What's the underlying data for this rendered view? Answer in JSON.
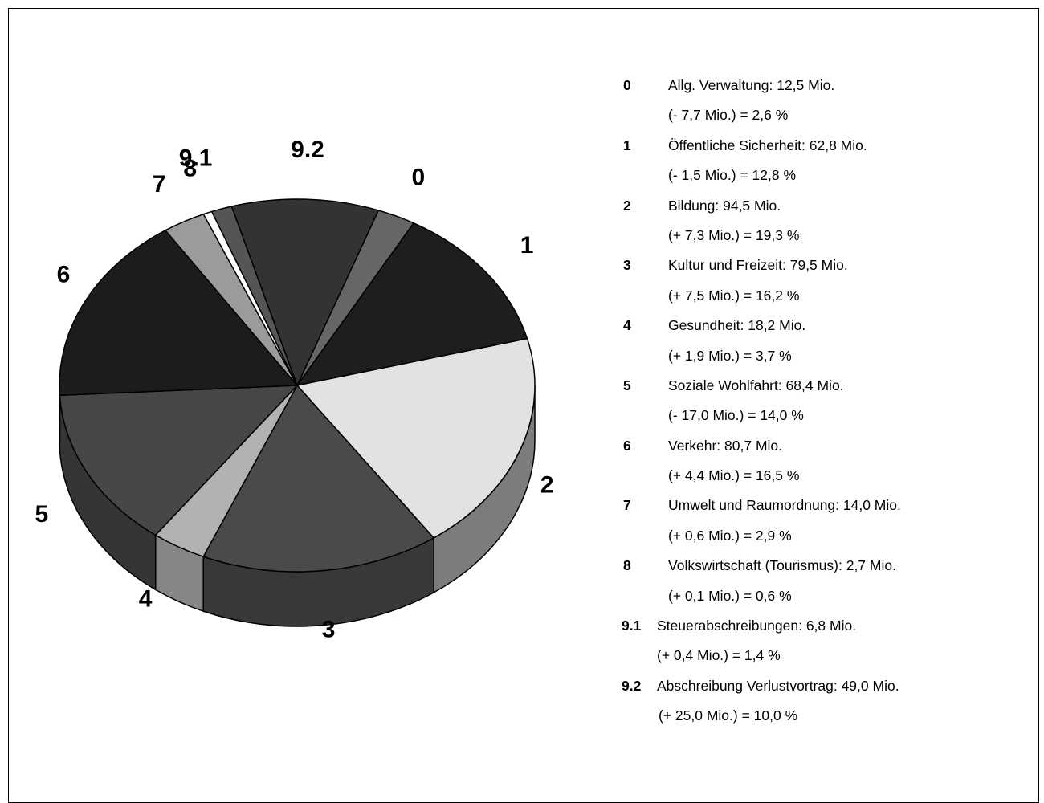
{
  "chart_data": {
    "type": "pie",
    "title": "",
    "slices": [
      {
        "code": "0",
        "label": "Allg. Verwaltung: 12,5 Mio.",
        "detail": "(- 7,7 Mio.) = 2,6 %",
        "value": 2.6,
        "color": "#666666"
      },
      {
        "code": "1",
        "label": "Öffentliche Sicherheit: 62,8 Mio.",
        "detail": "(- 1,5 Mio.) = 12,8 %",
        "value": 12.8,
        "color": "#1e1e1e"
      },
      {
        "code": "2",
        "label": "Bildung: 94,5 Mio.",
        "detail": "(+ 7,3 Mio.) = 19,3 %",
        "value": 19.3,
        "color": "#e2e2e2"
      },
      {
        "code": "3",
        "label": "Kultur und Freizeit: 79,5 Mio.",
        "detail": "(+ 7,5 Mio.) = 16,2 %",
        "value": 16.2,
        "color": "#4a4a4a"
      },
      {
        "code": "4",
        "label": "Gesundheit: 18,2 Mio.",
        "detail": "(+ 1,9 Mio.) = 3,7 %",
        "value": 3.7,
        "color": "#b2b2b2"
      },
      {
        "code": "5",
        "label": "Soziale Wohlfahrt: 68,4 Mio.",
        "detail": "(- 17,0 Mio.) = 14,0 %",
        "value": 14.0,
        "color": "#474747"
      },
      {
        "code": "6",
        "label": "Verkehr: 80,7 Mio.",
        "detail": "(+ 4,4 Mio.) =  16,5 %",
        "value": 16.5,
        "color": "#1c1c1c"
      },
      {
        "code": "7",
        "label": "Umwelt und Raumordnung: 14,0 Mio.",
        "detail": "(+ 0,6 Mio.)  = 2,9 %",
        "value": 2.9,
        "color": "#9b9b9b"
      },
      {
        "code": "8",
        "label": "Volkswirtschaft (Tourismus): 2,7 Mio.",
        "detail": "(+ 0,1 Mio.) = 0,6 %",
        "value": 0.6,
        "color": "#ffffff"
      },
      {
        "code": "9.1",
        "label": "Steuerabschreibungen: 6,8 Mio.",
        "detail": "(+ 0,4 Mio.) = 1,4 %",
        "value": 1.4,
        "color": "#555555"
      },
      {
        "code": "9.2",
        "label": "Abschreibung Verlustvortrag: 49,0 Mio.",
        "detail": "(+ 25,0 Mio.) = 10,0 %",
        "value": 10.0,
        "color": "#333333"
      }
    ]
  }
}
